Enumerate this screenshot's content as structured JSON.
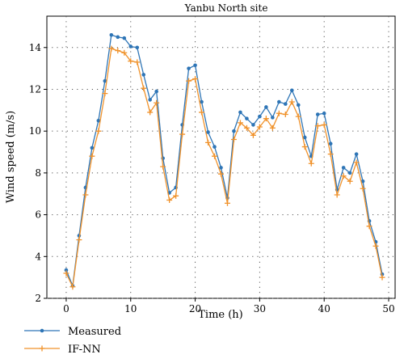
{
  "chart_data": {
    "type": "line",
    "title": "Yanbu North site",
    "xlabel": "Time (h)",
    "ylabel": "Wind speed (m/s)",
    "xlim": [
      -3,
      51
    ],
    "ylim": [
      2,
      15.5
    ],
    "xticks": [
      0,
      10,
      20,
      30,
      40,
      50
    ],
    "yticks": [
      2,
      4,
      6,
      8,
      10,
      12,
      14
    ],
    "grid": true,
    "legend_position": "below",
    "x": [
      0,
      1,
      2,
      3,
      4,
      5,
      6,
      7,
      8,
      9,
      10,
      11,
      12,
      13,
      14,
      15,
      16,
      17,
      18,
      19,
      20,
      21,
      22,
      23,
      24,
      25,
      26,
      27,
      28,
      29,
      30,
      31,
      32,
      33,
      34,
      35,
      36,
      37,
      38,
      39,
      40,
      41,
      42,
      43,
      44,
      45,
      46,
      47,
      48,
      49
    ],
    "series": [
      {
        "name": "Measured",
        "color": "#2e75b6",
        "marker": "dot",
        "values": [
          3.35,
          2.6,
          5.0,
          7.3,
          9.2,
          10.5,
          12.4,
          14.6,
          14.5,
          14.45,
          14.05,
          14.0,
          12.7,
          11.5,
          11.9,
          8.7,
          7.05,
          7.3,
          10.3,
          13.0,
          13.15,
          11.4,
          9.95,
          9.25,
          8.25,
          6.8,
          10.0,
          10.9,
          10.6,
          10.3,
          10.7,
          11.15,
          10.65,
          11.4,
          11.3,
          11.95,
          11.25,
          9.7,
          8.8,
          10.8,
          10.85,
          9.4,
          7.2,
          8.25,
          8.0,
          8.9,
          7.6,
          5.7,
          4.7,
          3.15
        ]
      },
      {
        "name": "IF-NN",
        "color": "#f0922b",
        "marker": "plus",
        "values": [
          3.2,
          2.55,
          4.8,
          6.95,
          8.8,
          10.0,
          11.8,
          13.95,
          13.85,
          13.75,
          13.35,
          13.3,
          12.05,
          10.9,
          11.35,
          8.3,
          6.7,
          6.9,
          9.85,
          12.4,
          12.5,
          10.9,
          9.45,
          8.8,
          7.95,
          6.55,
          9.6,
          10.4,
          10.15,
          9.8,
          10.2,
          10.6,
          10.15,
          10.85,
          10.8,
          11.4,
          10.7,
          9.25,
          8.45,
          10.25,
          10.3,
          8.9,
          6.95,
          7.85,
          7.6,
          8.5,
          7.25,
          5.45,
          4.5,
          3.0
        ]
      }
    ]
  }
}
